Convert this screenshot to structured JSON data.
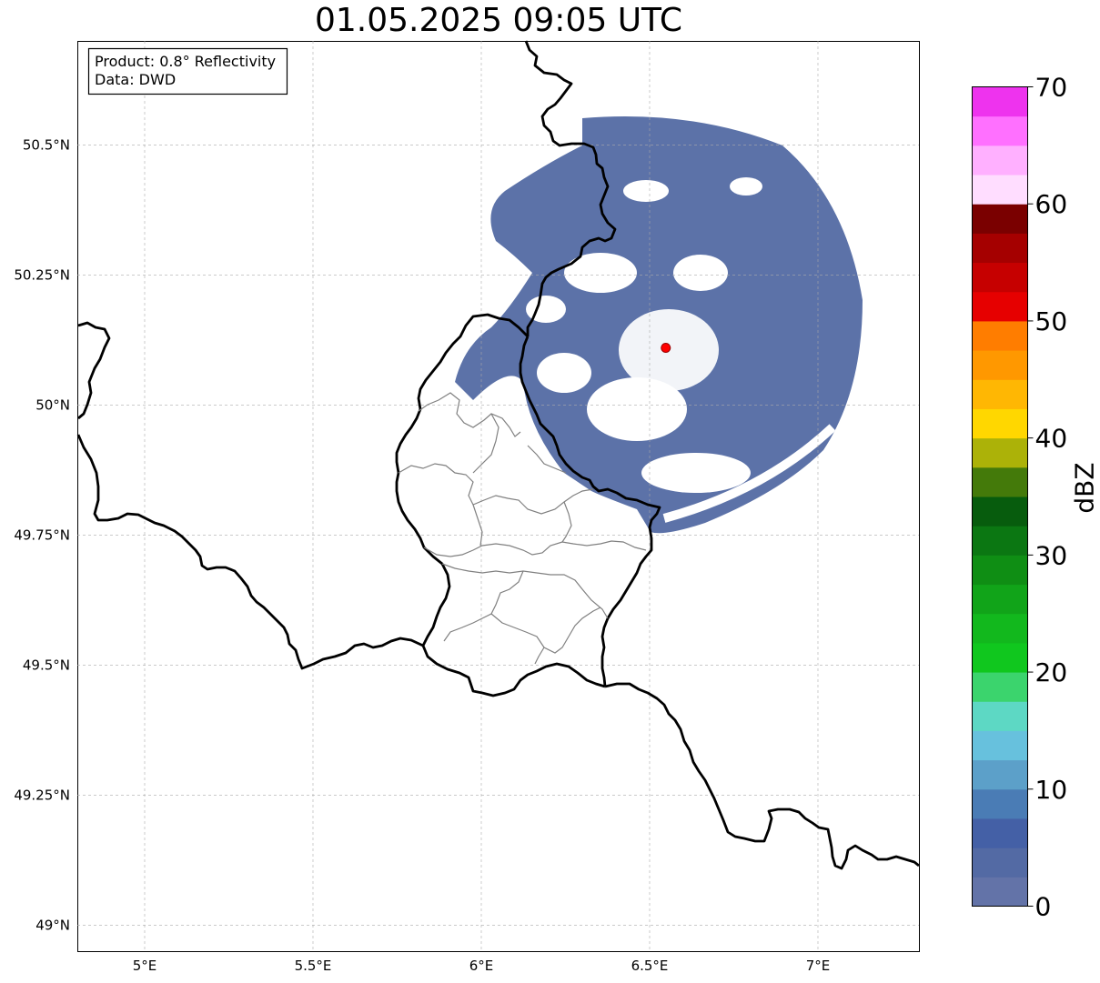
{
  "title": "01.05.2025 09:05 UTC",
  "info_box": {
    "product": "Product: 0.8° Reflectivity",
    "source": "Data: DWD"
  },
  "map": {
    "x_ticks": [
      {
        "lon": 5.0,
        "label": "5°E"
      },
      {
        "lon": 5.5,
        "label": "5.5°E"
      },
      {
        "lon": 6.0,
        "label": "6°E"
      },
      {
        "lon": 6.5,
        "label": "6.5°E"
      },
      {
        "lon": 7.0,
        "label": "7°E"
      }
    ],
    "y_ticks": [
      {
        "lat": 50.5,
        "label": "50.5°N"
      },
      {
        "lat": 50.25,
        "label": "50.25°N"
      },
      {
        "lat": 50.0,
        "label": "50°N"
      },
      {
        "lat": 49.75,
        "label": "49.75°N"
      },
      {
        "lat": 49.5,
        "label": "49.5°N"
      },
      {
        "lat": 49.25,
        "label": "49.25°N"
      },
      {
        "lat": 49.0,
        "label": "49°N"
      }
    ],
    "extent": {
      "lon_min": 4.8,
      "lon_max": 7.3,
      "lat_min": 48.95,
      "lat_max": 50.7
    },
    "radar_site": {
      "lon": 6.548,
      "lat": 50.11,
      "color": "#ff0000"
    },
    "echo_color": "#5c72a8"
  },
  "colorbar": {
    "label": "dBZ",
    "min": 0,
    "max": 70,
    "ticks": [
      {
        "value": 0,
        "label": "0"
      },
      {
        "value": 10,
        "label": "10"
      },
      {
        "value": 20,
        "label": "20"
      },
      {
        "value": 30,
        "label": "30"
      },
      {
        "value": 40,
        "label": "40"
      },
      {
        "value": 50,
        "label": "50"
      },
      {
        "value": 60,
        "label": "60"
      },
      {
        "value": 70,
        "label": "70"
      }
    ],
    "colors": [
      "#6373a8",
      "#536aa4",
      "#4460a6",
      "#4a7cb5",
      "#5ca0c9",
      "#67c1dd",
      "#5dd8c4",
      "#3bd46d",
      "#10c71e",
      "#12b81d",
      "#11a419",
      "#0f8e14",
      "#0b7712",
      "#075c0d",
      "#447a0a",
      "#acb208",
      "#ffd700",
      "#ffb703",
      "#ff9800",
      "#ff7d00",
      "#e60000",
      "#c60000",
      "#a50000",
      "#7a0000",
      "#ffddff",
      "#ffb0ff",
      "#ff70ff",
      "#ee33ee"
    ]
  }
}
